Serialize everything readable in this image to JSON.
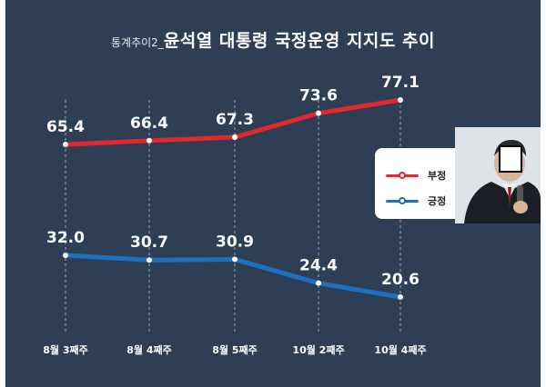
{
  "title": {
    "prefix": "통계추이2_",
    "main": "윤석열 대통령 국정운영 지지도 추이"
  },
  "legend": {
    "negative_label": "부정",
    "positive_label": "긍정"
  },
  "photo": {
    "icon": "person-photo-icon"
  },
  "colors": {
    "background": "#2e3e55",
    "negative": "#e0282e",
    "positive": "#1f6fbf"
  },
  "chart_data": {
    "type": "line",
    "title": "윤석열 대통령 국정운영 지지도 추이",
    "categories": [
      "8월 3째주",
      "8월 4째주",
      "8월 5째주",
      "10월 2째주",
      "10월 4째주"
    ],
    "series": [
      {
        "name": "부정",
        "values": [
          65.4,
          66.4,
          67.3,
          73.6,
          77.1
        ],
        "labels": [
          "65.4",
          "66.4",
          "67.3",
          "73.6",
          "77.1"
        ]
      },
      {
        "name": "긍정",
        "values": [
          32.0,
          30.7,
          30.9,
          24.4,
          20.6
        ],
        "labels": [
          "32.0",
          "30.7",
          "30.9",
          "24.4",
          "20.6"
        ]
      }
    ],
    "xlabel": "",
    "ylabel": "",
    "ylim": [
      0,
      100
    ],
    "grid": false,
    "legend_position": "right"
  }
}
